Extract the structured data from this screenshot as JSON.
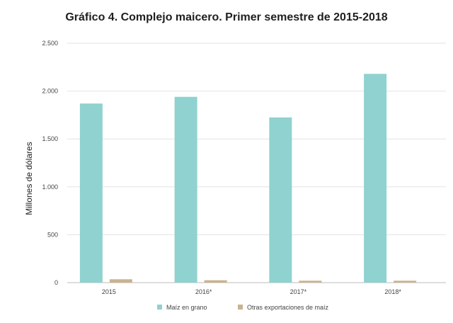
{
  "chart_data": {
    "type": "bar",
    "title": "Gráfico 4. Complejo maicero. Primer semestre de 2015-2018",
    "xlabel": "",
    "ylabel": "Millones de dólares",
    "categories": [
      "2015",
      "2016*",
      "2017*",
      "2018*"
    ],
    "series": [
      {
        "name": "Maíz en grano",
        "values": [
          1870,
          1940,
          1725,
          2180
        ],
        "color": "#8fd2d0"
      },
      {
        "name": "Otras exportaciones de maíz",
        "values": [
          35,
          25,
          20,
          20
        ],
        "color": "#c9b38f"
      }
    ],
    "ylim": [
      0,
      2500
    ],
    "yticks": [
      0,
      500,
      1000,
      1500,
      2000,
      2500
    ],
    "ytick_labels": [
      "0",
      "500",
      "1.000",
      "1.500",
      "2.000",
      "2.500"
    ],
    "grid": true,
    "legend": "bottom"
  }
}
